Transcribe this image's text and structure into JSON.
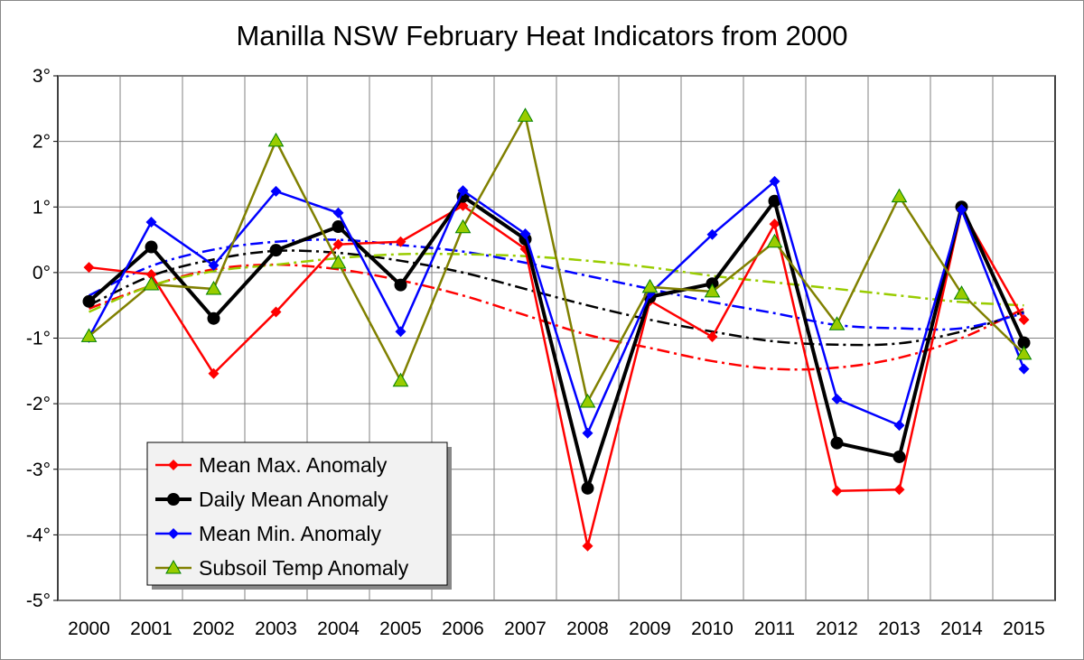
{
  "chart_data": {
    "type": "line",
    "title": "Manilla NSW February Heat Indicators from 2000",
    "xlabel": "",
    "ylabel": "",
    "categories": [
      "2000",
      "2001",
      "2002",
      "2003",
      "2004",
      "2005",
      "2006",
      "2007",
      "2008",
      "2009",
      "2010",
      "2011",
      "2012",
      "2013",
      "2014",
      "2015"
    ],
    "ylim": [
      -5,
      3
    ],
    "yticks": [
      "3°",
      "2°",
      "1°",
      "0°",
      "-1°",
      "-2°",
      "-3°",
      "-4°",
      "-5°"
    ],
    "ytick_values": [
      3,
      2,
      1,
      0,
      -1,
      -2,
      -3,
      -4,
      -5
    ],
    "grid": true,
    "legend_position": "bottom-left",
    "series": [
      {
        "name": "Mean Max. Anomaly",
        "color": "#ff0000",
        "marker": "diamond",
        "values": [
          0.08,
          -0.03,
          -1.54,
          -0.6,
          0.43,
          0.47,
          1.02,
          0.36,
          -4.17,
          -0.43,
          -0.98,
          0.74,
          -3.33,
          -3.31,
          0.96,
          -0.72
        ],
        "trend": [
          -0.55,
          -0.2,
          0.05,
          0.12,
          0.05,
          -0.12,
          -0.35,
          -0.65,
          -0.95,
          -1.15,
          -1.35,
          -1.47,
          -1.45,
          -1.3,
          -1.0,
          -0.55
        ]
      },
      {
        "name": "Daily Mean Anomaly",
        "color": "#000000",
        "marker": "circle",
        "values": [
          -0.44,
          0.39,
          -0.7,
          0.34,
          0.7,
          -0.19,
          1.16,
          0.51,
          -3.29,
          -0.37,
          -0.17,
          1.09,
          -2.6,
          -2.81,
          1.0,
          -1.07
        ],
        "trend": [
          -0.5,
          -0.05,
          0.2,
          0.33,
          0.3,
          0.18,
          0.0,
          -0.25,
          -0.5,
          -0.72,
          -0.9,
          -1.05,
          -1.1,
          -1.08,
          -0.9,
          -0.6
        ]
      },
      {
        "name": "Mean Min. Anomaly",
        "color": "#0000ff",
        "marker": "diamond",
        "values": [
          -0.99,
          0.77,
          0.11,
          1.24,
          0.91,
          -0.9,
          1.25,
          0.59,
          -2.45,
          -0.32,
          0.58,
          1.39,
          -1.93,
          -2.33,
          0.96,
          -1.47
        ],
        "trend": [
          -0.35,
          0.1,
          0.35,
          0.47,
          0.5,
          0.42,
          0.32,
          0.15,
          -0.05,
          -0.25,
          -0.45,
          -0.62,
          -0.8,
          -0.85,
          -0.85,
          -0.62
        ]
      },
      {
        "name": "Subsoil Temp Anomaly",
        "color": "#808000",
        "marker": "triangle",
        "marker_fill": "#99cc00",
        "values": [
          -0.97,
          -0.18,
          -0.25,
          2.01,
          0.15,
          -1.65,
          0.69,
          2.39,
          -1.97,
          -0.22,
          -0.29,
          0.47,
          -0.79,
          1.16,
          -0.32,
          -1.24
        ],
        "trend_color": "#99cc00",
        "trend": [
          -0.6,
          -0.2,
          0.02,
          0.12,
          0.22,
          0.28,
          0.28,
          0.25,
          0.18,
          0.08,
          -0.05,
          -0.15,
          -0.25,
          -0.35,
          -0.45,
          -0.5
        ]
      }
    ]
  }
}
